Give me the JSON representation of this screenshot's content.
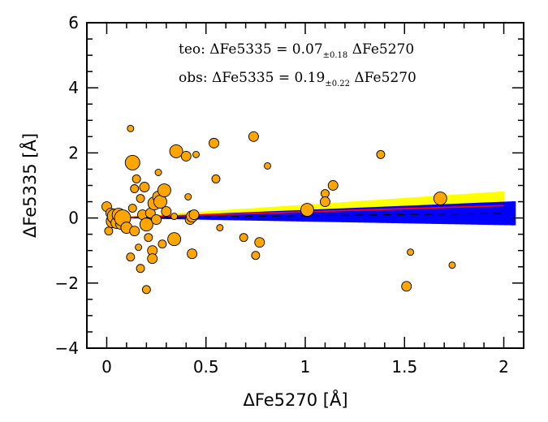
{
  "chart_data": {
    "type": "scatter",
    "xlabel": "ΔFe5270   [Å]",
    "ylabel": "ΔFe5335   [Å]",
    "xlim": [
      -0.1,
      2.1
    ],
    "ylim": [
      -4,
      6
    ],
    "xticks": [
      0,
      0.5,
      1,
      1.5,
      2
    ],
    "xtick_labels": [
      "0",
      "0.5",
      "1",
      "1.5",
      "2"
    ],
    "yticks": [
      -4,
      -2,
      0,
      2,
      4,
      6
    ],
    "ytick_labels": [
      "−4",
      "−2",
      "0",
      "2",
      "4",
      "6"
    ],
    "grid": false,
    "colors": {
      "points_fill": "#FFA500",
      "points_edge": "#000000",
      "yellow_band": "#FFFF00",
      "blue_band": "#0000FF",
      "red_line": "#FF0000",
      "dashed_line": "#000000"
    },
    "annotations": [
      {
        "prefix": "teo:  ΔFe5335  =  0.07",
        "sub": "±0.18",
        "suffix": "  ΔFe5270"
      },
      {
        "prefix": "obs:  ΔFe5335  =  0.19",
        "sub": "±0.22",
        "suffix": "  ΔFe5270"
      }
    ],
    "lines": [
      {
        "style": "solid",
        "color": "#FF0000",
        "slope": 0.19,
        "x_range": [
          0,
          2
        ]
      },
      {
        "style": "dashed",
        "color": "#000000",
        "slope": 0.07,
        "x_range": [
          0,
          2
        ]
      }
    ],
    "bands": [
      {
        "color": "#FFFF00",
        "x_range": [
          0,
          2
        ],
        "slope_low": -0.03,
        "slope_high": 0.41
      },
      {
        "color": "#0000FF",
        "x_range": [
          0,
          2.05
        ],
        "slope_low": -0.11,
        "slope_high": 0.25
      }
    ],
    "points": [
      {
        "x": 0.0,
        "y": 0.35,
        "s": 6
      },
      {
        "x": 0.01,
        "y": -0.4,
        "s": 5
      },
      {
        "x": 0.02,
        "y": 0.15,
        "s": 6
      },
      {
        "x": 0.03,
        "y": -0.1,
        "s": 8
      },
      {
        "x": 0.04,
        "y": 0.05,
        "s": 9
      },
      {
        "x": 0.05,
        "y": -0.15,
        "s": 7
      },
      {
        "x": 0.06,
        "y": 0.1,
        "s": 8
      },
      {
        "x": 0.07,
        "y": -0.2,
        "s": 6
      },
      {
        "x": 0.08,
        "y": 0.0,
        "s": 10
      },
      {
        "x": 0.1,
        "y": -0.3,
        "s": 7
      },
      {
        "x": 0.12,
        "y": 2.75,
        "s": 4
      },
      {
        "x": 0.13,
        "y": 0.3,
        "s": 5
      },
      {
        "x": 0.12,
        "y": -1.2,
        "s": 5
      },
      {
        "x": 0.14,
        "y": -0.4,
        "s": 6
      },
      {
        "x": 0.13,
        "y": 1.7,
        "s": 9
      },
      {
        "x": 0.14,
        "y": 0.9,
        "s": 5
      },
      {
        "x": 0.15,
        "y": 1.2,
        "s": 5
      },
      {
        "x": 0.16,
        "y": -0.9,
        "s": 4
      },
      {
        "x": 0.17,
        "y": 0.6,
        "s": 5
      },
      {
        "x": 0.17,
        "y": -1.55,
        "s": 5
      },
      {
        "x": 0.18,
        "y": 0.1,
        "s": 6
      },
      {
        "x": 0.19,
        "y": 0.95,
        "s": 6
      },
      {
        "x": 0.2,
        "y": -0.2,
        "s": 8
      },
      {
        "x": 0.2,
        "y": -2.2,
        "s": 5
      },
      {
        "x": 0.21,
        "y": -0.6,
        "s": 5
      },
      {
        "x": 0.22,
        "y": 0.15,
        "s": 6
      },
      {
        "x": 0.23,
        "y": -1.0,
        "s": 6
      },
      {
        "x": 0.23,
        "y": -1.25,
        "s": 6
      },
      {
        "x": 0.24,
        "y": 0.45,
        "s": 8
      },
      {
        "x": 0.25,
        "y": -0.05,
        "s": 6
      },
      {
        "x": 0.26,
        "y": 1.4,
        "s": 4
      },
      {
        "x": 0.26,
        "y": 0.65,
        "s": 7
      },
      {
        "x": 0.27,
        "y": 0.5,
        "s": 8
      },
      {
        "x": 0.28,
        "y": -0.8,
        "s": 5
      },
      {
        "x": 0.29,
        "y": 0.85,
        "s": 8
      },
      {
        "x": 0.3,
        "y": 0.2,
        "s": 6
      },
      {
        "x": 0.35,
        "y": 2.05,
        "s": 8
      },
      {
        "x": 0.34,
        "y": 0.05,
        "s": 4
      },
      {
        "x": 0.34,
        "y": -0.65,
        "s": 8
      },
      {
        "x": 0.4,
        "y": 1.9,
        "s": 6
      },
      {
        "x": 0.41,
        "y": 0.65,
        "s": 4
      },
      {
        "x": 0.42,
        "y": -0.05,
        "s": 6
      },
      {
        "x": 0.43,
        "y": 0.05,
        "s": 7
      },
      {
        "x": 0.43,
        "y": -1.1,
        "s": 6
      },
      {
        "x": 0.44,
        "y": 0.1,
        "s": 6
      },
      {
        "x": 0.45,
        "y": 1.95,
        "s": 4
      },
      {
        "x": 0.54,
        "y": 2.3,
        "s": 6
      },
      {
        "x": 0.55,
        "y": 1.2,
        "s": 5
      },
      {
        "x": 0.57,
        "y": -0.3,
        "s": 4
      },
      {
        "x": 0.69,
        "y": -0.6,
        "s": 5
      },
      {
        "x": 0.74,
        "y": 2.5,
        "s": 6
      },
      {
        "x": 0.75,
        "y": -1.15,
        "s": 5
      },
      {
        "x": 0.77,
        "y": -0.75,
        "s": 6
      },
      {
        "x": 0.81,
        "y": 1.6,
        "s": 4
      },
      {
        "x": 1.01,
        "y": 0.25,
        "s": 8
      },
      {
        "x": 1.1,
        "y": 0.75,
        "s": 5
      },
      {
        "x": 1.1,
        "y": 0.5,
        "s": 6
      },
      {
        "x": 1.14,
        "y": 1.0,
        "s": 6
      },
      {
        "x": 1.38,
        "y": 1.95,
        "s": 5
      },
      {
        "x": 1.51,
        "y": -2.1,
        "s": 6
      },
      {
        "x": 1.53,
        "y": -1.05,
        "s": 4
      },
      {
        "x": 1.68,
        "y": 0.6,
        "s": 8
      },
      {
        "x": 1.74,
        "y": -1.45,
        "s": 4
      }
    ]
  }
}
